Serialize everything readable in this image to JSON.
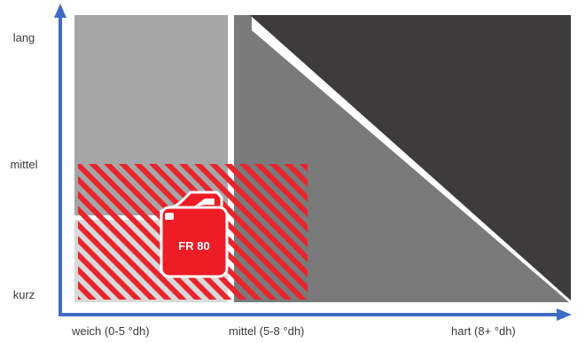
{
  "y_axis": {
    "labels": [
      "lang",
      "mittel",
      "kurz"
    ]
  },
  "x_axis": {
    "labels": [
      "weich (0-5 °dh)",
      "mittel (5-8 °dh)",
      "hart (8+ °dh)"
    ]
  },
  "product": {
    "label": "FR 80",
    "icon": "canister-icon",
    "color": "#ee1c25"
  },
  "colors": {
    "axis": "#3f6bc4",
    "light_gray": "#a6a6a6",
    "mid_gray": "#7a7a7a",
    "dark_gray": "#3e3b3c",
    "pale_gray": "#d9d9d9",
    "hatch_red": "#e8242c"
  }
}
